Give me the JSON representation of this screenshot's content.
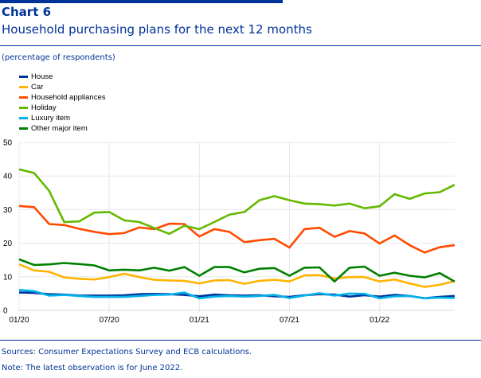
{
  "header": {
    "chart_number": "Chart 6",
    "title": "Household purchasing plans for the next 12 months",
    "unit_note": "(percentage of respondents)"
  },
  "footer": {
    "sources": "Sources: Consumer Expectations Survey and ECB calculations.",
    "note": "Note: The latest observation is for June 2022."
  },
  "chart_data": {
    "type": "line",
    "title": "Household purchasing plans for the next 12 months",
    "xlabel": "",
    "ylabel": "percentage of respondents",
    "ylim": [
      0,
      50
    ],
    "yticks": [
      0,
      10,
      20,
      30,
      40,
      50
    ],
    "x": [
      "01/20",
      "02/20",
      "03/20",
      "04/20",
      "05/20",
      "06/20",
      "07/20",
      "08/20",
      "09/20",
      "10/20",
      "11/20",
      "12/20",
      "01/21",
      "02/21",
      "03/21",
      "04/21",
      "05/21",
      "06/21",
      "07/21",
      "08/21",
      "09/21",
      "10/21",
      "11/21",
      "12/21",
      "01/22",
      "02/22",
      "03/22",
      "04/22",
      "05/22",
      "06/22"
    ],
    "xtick_labels": [
      {
        "index": 0,
        "label": "01/20"
      },
      {
        "index": 6,
        "label": "07/20"
      },
      {
        "index": 12,
        "label": "01/21"
      },
      {
        "index": 18,
        "label": "07/21"
      },
      {
        "index": 24,
        "label": "01/22"
      }
    ],
    "grid": true,
    "legend_position": "top-left",
    "series": [
      {
        "name": "House",
        "color": "#003299",
        "values": [
          5.3,
          5.2,
          4.8,
          4.7,
          4.4,
          4.4,
          4.4,
          4.5,
          4.8,
          4.9,
          4.8,
          4.6,
          4.2,
          4.7,
          4.5,
          4.4,
          4.5,
          4.2,
          4.0,
          4.5,
          4.8,
          4.7,
          4.1,
          4.5,
          4.1,
          4.6,
          4.3,
          3.6,
          4.0,
          4.3
        ]
      },
      {
        "name": "Car",
        "color": "#ffb400",
        "values": [
          13.7,
          11.9,
          11.5,
          9.8,
          9.4,
          9.2,
          9.9,
          10.9,
          9.9,
          9.1,
          8.9,
          8.8,
          8.0,
          8.9,
          9.0,
          7.9,
          8.8,
          9.1,
          8.6,
          10.4,
          10.5,
          9.5,
          9.9,
          9.9,
          8.6,
          9.2,
          8.0,
          7.0,
          7.6,
          8.7
        ]
      },
      {
        "name": "Household appliances",
        "color": "#ff4b00",
        "values": [
          31.1,
          30.7,
          25.7,
          25.4,
          24.3,
          23.4,
          22.7,
          23.0,
          24.7,
          24.2,
          25.8,
          25.7,
          22.0,
          24.2,
          23.4,
          20.3,
          20.9,
          21.3,
          18.7,
          24.2,
          24.6,
          21.9,
          23.6,
          22.9,
          19.9,
          22.3,
          19.4,
          17.2,
          18.8,
          19.4
        ]
      },
      {
        "name": "Holiday",
        "color": "#65b800",
        "values": [
          42.0,
          40.9,
          35.6,
          26.3,
          26.5,
          29.1,
          29.3,
          26.8,
          26.3,
          24.5,
          22.8,
          25.2,
          24.2,
          26.3,
          28.5,
          29.3,
          32.8,
          34.0,
          32.8,
          31.8,
          31.6,
          31.2,
          31.8,
          30.4,
          31.0,
          34.6,
          33.2,
          34.8,
          35.2,
          37.4
        ]
      },
      {
        "name": "Luxury item",
        "color": "#00b1ea",
        "values": [
          6.1,
          5.7,
          4.4,
          4.6,
          4.3,
          4.0,
          4.0,
          4.0,
          4.3,
          4.6,
          4.7,
          5.3,
          3.6,
          4.1,
          4.3,
          4.1,
          4.3,
          4.6,
          3.7,
          4.4,
          5.1,
          4.4,
          5.0,
          4.9,
          3.6,
          4.2,
          4.3,
          3.6,
          3.8,
          3.7
        ]
      },
      {
        "name": "Other major item",
        "color": "#008000",
        "values": [
          15.2,
          13.5,
          13.7,
          14.1,
          13.8,
          13.4,
          11.9,
          12.1,
          11.9,
          12.7,
          11.8,
          12.9,
          10.3,
          12.9,
          12.9,
          11.3,
          12.4,
          12.6,
          10.3,
          12.7,
          12.8,
          8.6,
          12.7,
          13.0,
          10.3,
          11.2,
          10.3,
          9.8,
          11.1,
          8.6
        ]
      }
    ]
  }
}
